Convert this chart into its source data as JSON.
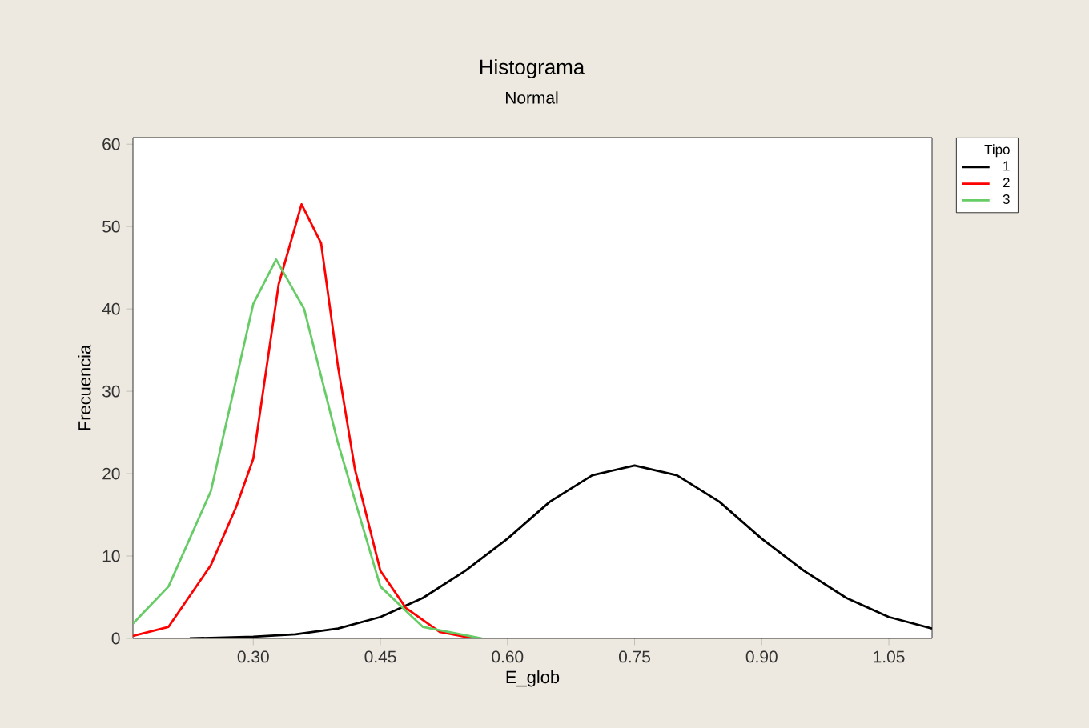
{
  "chart_data": {
    "type": "line",
    "title": "Histograma",
    "subtitle": "Normal",
    "xlabel": "E_glob",
    "ylabel": "Frecuencia",
    "legend_title": "Tipo",
    "legend": "right",
    "marker": "none",
    "line_style": "solid",
    "grid": false,
    "xlim": [
      0.158,
      1.101
    ],
    "ylim": [
      0,
      60.8
    ],
    "xticks": [
      {
        "value": 0.3,
        "label": "0.30"
      },
      {
        "value": 0.45,
        "label": "0.45"
      },
      {
        "value": 0.6,
        "label": "0.60"
      },
      {
        "value": 0.75,
        "label": "0.75"
      },
      {
        "value": 0.9,
        "label": "0.90"
      },
      {
        "value": 1.05,
        "label": "1.05"
      }
    ],
    "yticks": [
      0,
      10,
      20,
      30,
      40,
      50,
      60
    ],
    "series": [
      {
        "name": "1",
        "color": "#000000",
        "x": [
          0.225,
          0.3,
          0.35,
          0.4,
          0.45,
          0.5,
          0.55,
          0.6,
          0.65,
          0.7,
          0.75,
          0.8,
          0.85,
          0.9,
          0.95,
          1.0,
          1.05,
          1.101
        ],
        "values": [
          0,
          0.2,
          0.5,
          1.2,
          2.6,
          4.9,
          8.2,
          12.1,
          16.6,
          19.8,
          21,
          19.8,
          16.6,
          12.1,
          8.2,
          4.9,
          2.6,
          1.2
        ]
      },
      {
        "name": "2",
        "color": "#ff0000",
        "x": [
          0.158,
          0.2,
          0.25,
          0.28,
          0.3,
          0.33,
          0.357,
          0.38,
          0.4,
          0.42,
          0.45,
          0.48,
          0.52,
          0.56
        ],
        "values": [
          0.3,
          1.4,
          8.9,
          16,
          21.8,
          43,
          52.7,
          48,
          33,
          20.5,
          8.2,
          3.7,
          0.8,
          0
        ]
      },
      {
        "name": "3",
        "color": "#66cc66",
        "x": [
          0.158,
          0.2,
          0.25,
          0.3,
          0.327,
          0.36,
          0.4,
          0.45,
          0.5,
          0.57
        ],
        "values": [
          1.8,
          6.3,
          17.9,
          40.6,
          46,
          40,
          23.7,
          6.3,
          1.4,
          0
        ]
      }
    ]
  }
}
